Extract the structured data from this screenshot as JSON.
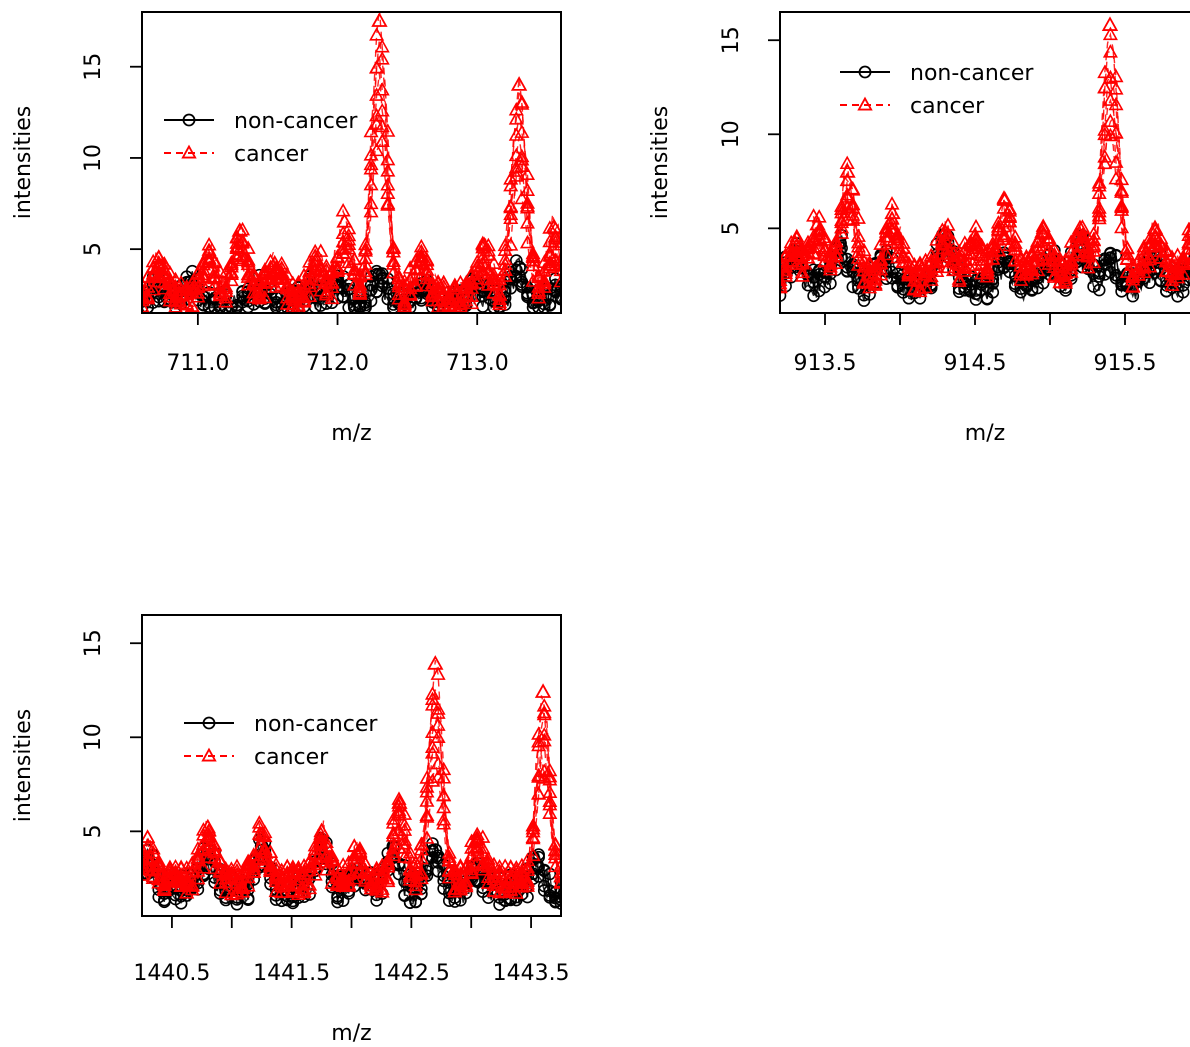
{
  "chart_data": [
    {
      "type": "line",
      "title": "",
      "xlabel": "m/z",
      "ylabel": "intensities",
      "xlim": [
        710.6,
        713.6
      ],
      "ylim": [
        1.5,
        18.0
      ],
      "xticks": [
        711.0,
        712.0,
        713.0
      ],
      "xtick_labels": [
        "711.0",
        "712.0",
        "713.0"
      ],
      "yticks": [
        5,
        10,
        15
      ],
      "ytick_labels": [
        "5",
        "10",
        "15"
      ],
      "grid": false,
      "legend_position": "top-left",
      "series": [
        {
          "name": "non-cancer",
          "color": "#000000",
          "marker": "circle",
          "line": "solid",
          "peaks": [
            [
              710.72,
              3.0
            ],
            [
              710.95,
              3.2
            ],
            [
              711.45,
              2.9
            ],
            [
              711.8,
              3.0
            ],
            [
              712.0,
              3.2
            ],
            [
              712.3,
              3.6
            ],
            [
              712.6,
              2.8
            ],
            [
              713.0,
              3.0
            ],
            [
              713.3,
              4.0
            ],
            [
              713.55,
              2.8
            ]
          ]
        },
        {
          "name": "cancer",
          "color": "#ff0000",
          "marker": "triangle",
          "line": "dashed",
          "peaks": [
            [
              710.72,
              4.5
            ],
            [
              711.08,
              4.8
            ],
            [
              711.3,
              6.0
            ],
            [
              711.55,
              4.2
            ],
            [
              711.85,
              4.4
            ],
            [
              712.05,
              6.5
            ],
            [
              712.3,
              17.5
            ],
            [
              712.6,
              4.6
            ],
            [
              713.05,
              5.2
            ],
            [
              713.3,
              14.0
            ],
            [
              713.55,
              6.2
            ]
          ]
        }
      ]
    },
    {
      "type": "line",
      "title": "",
      "xlabel": "m/z",
      "ylabel": "intensities",
      "xlim": [
        913.2,
        916.0
      ],
      "ylim": [
        0.5,
        16.5
      ],
      "xticks": [
        913.5,
        914.0,
        914.5,
        915.0,
        915.5,
        916.0
      ],
      "xtick_labels": [
        "913.5",
        "914.5",
        "915.5"
      ],
      "yticks": [
        5,
        10,
        15
      ],
      "ytick_labels": [
        "5",
        "10",
        "15"
      ],
      "grid": false,
      "legend_position": "top-left",
      "series": [
        {
          "name": "non-cancer",
          "color": "#000000",
          "marker": "circle",
          "line": "solid",
          "peaks": [
            [
              913.3,
              3.6
            ],
            [
              913.6,
              4.2
            ],
            [
              913.9,
              3.4
            ],
            [
              914.3,
              4.6
            ],
            [
              914.7,
              3.4
            ],
            [
              915.0,
              3.6
            ],
            [
              915.2,
              4.2
            ],
            [
              915.4,
              3.4
            ],
            [
              915.7,
              3.2
            ],
            [
              915.95,
              3.0
            ]
          ]
        },
        {
          "name": "cancer",
          "color": "#ff0000",
          "marker": "triangle",
          "line": "dashed",
          "peaks": [
            [
              913.3,
              4.2
            ],
            [
              913.45,
              5.2
            ],
            [
              913.65,
              8.0
            ],
            [
              913.95,
              5.8
            ],
            [
              914.3,
              4.8
            ],
            [
              914.5,
              4.6
            ],
            [
              914.7,
              6.5
            ],
            [
              914.95,
              4.8
            ],
            [
              915.2,
              5.0
            ],
            [
              915.4,
              15.8
            ],
            [
              915.7,
              5.0
            ],
            [
              915.95,
              4.8
            ]
          ]
        }
      ]
    },
    {
      "type": "line",
      "title": "",
      "xlabel": "m/z",
      "ylabel": "intensities",
      "xlim": [
        1440.25,
        1443.75
      ],
      "ylim": [
        0.5,
        16.5
      ],
      "xticks": [
        1440.5,
        1441.0,
        1441.5,
        1442.0,
        1442.5,
        1443.0,
        1443.5
      ],
      "xtick_labels": [
        "1440.5",
        "1441.5",
        "1442.5",
        "1443.5"
      ],
      "yticks": [
        5,
        10,
        15
      ],
      "ytick_labels": [
        "5",
        "10",
        "15"
      ],
      "grid": false,
      "legend_position": "top-left",
      "series": [
        {
          "name": "non-cancer",
          "color": "#000000",
          "marker": "circle",
          "line": "solid",
          "peaks": [
            [
              1440.3,
              3.6
            ],
            [
              1440.8,
              4.0
            ],
            [
              1441.25,
              4.2
            ],
            [
              1441.75,
              4.5
            ],
            [
              1442.05,
              3.0
            ],
            [
              1442.35,
              4.2
            ],
            [
              1442.7,
              4.0
            ],
            [
              1443.05,
              3.0
            ],
            [
              1443.55,
              3.2
            ]
          ]
        },
        {
          "name": "cancer",
          "color": "#ff0000",
          "marker": "triangle",
          "line": "dashed",
          "peaks": [
            [
              1440.3,
              4.2
            ],
            [
              1440.8,
              5.2
            ],
            [
              1441.25,
              4.8
            ],
            [
              1441.75,
              5.0
            ],
            [
              1442.05,
              3.8
            ],
            [
              1442.4,
              6.5
            ],
            [
              1442.7,
              13.9
            ],
            [
              1443.05,
              4.6
            ],
            [
              1443.6,
              12.4
            ]
          ]
        }
      ]
    }
  ]
}
